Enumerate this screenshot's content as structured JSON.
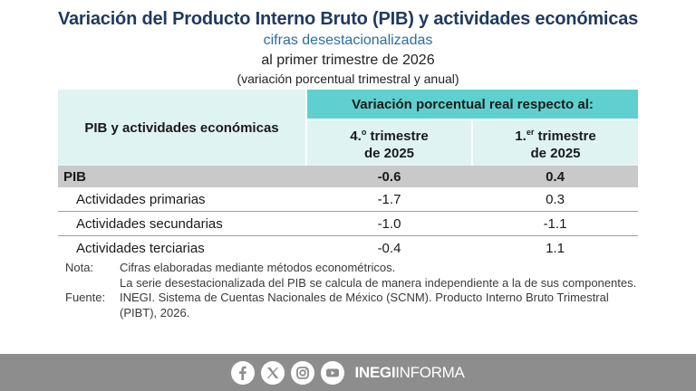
{
  "header": {
    "title": "Variación del Producto Interno Bruto (PIB) y actividades económicas",
    "subtitle1": "cifras desestacionalizadas",
    "subtitle2": "al primer trimestre de 2026",
    "subtitle3": "(variación porcentual trimestral y anual)"
  },
  "table": {
    "left_header": "PIB y actividades económicas",
    "group_header": "Variación porcentual real respecto al:",
    "col1_prefix": "4.",
    "col1_sup": "o",
    "col1_suffix": " trimestre",
    "col1_year": "de 2025",
    "col2_prefix": "1.",
    "col2_sup": "er",
    "col2_suffix": " trimestre",
    "col2_year": "de 2025",
    "rows": [
      {
        "label": "PIB",
        "quarterly": "-0.6",
        "annual": "0.4"
      },
      {
        "label": "Actividades primarias",
        "quarterly": "-1.7",
        "annual": "0.3"
      },
      {
        "label": "Actividades secundarias",
        "quarterly": "-1.0",
        "annual": "-1.1"
      },
      {
        "label": "Actividades terciarias",
        "quarterly": "-0.4",
        "annual": "1.1"
      }
    ]
  },
  "notes": {
    "note_label": "Nota:",
    "note_line1": "Cifras elaboradas mediante métodos econométricos.",
    "note_line2": "La serie desestacionalizada del PIB se calcula de manera independiente a la de sus componentes.",
    "source_label": "Fuente:",
    "source_text": "INEGI. Sistema de Cuentas Nacionales de México (SCNM). Producto Interno Bruto Trimestral (PIBT), 2026."
  },
  "footer": {
    "icons": [
      "facebook-icon",
      "x-icon",
      "instagram-icon",
      "youtube-icon"
    ],
    "brand_bold": "INEGI",
    "brand_light": "INFORMA",
    "background": "#8d8d8d"
  },
  "colors": {
    "title": "#1f3a5f",
    "subtitle": "#2c6e9e",
    "header_teal": "#5fd0cf",
    "header_light": "#dff3f3",
    "pib_row": "#c9c9c9"
  }
}
